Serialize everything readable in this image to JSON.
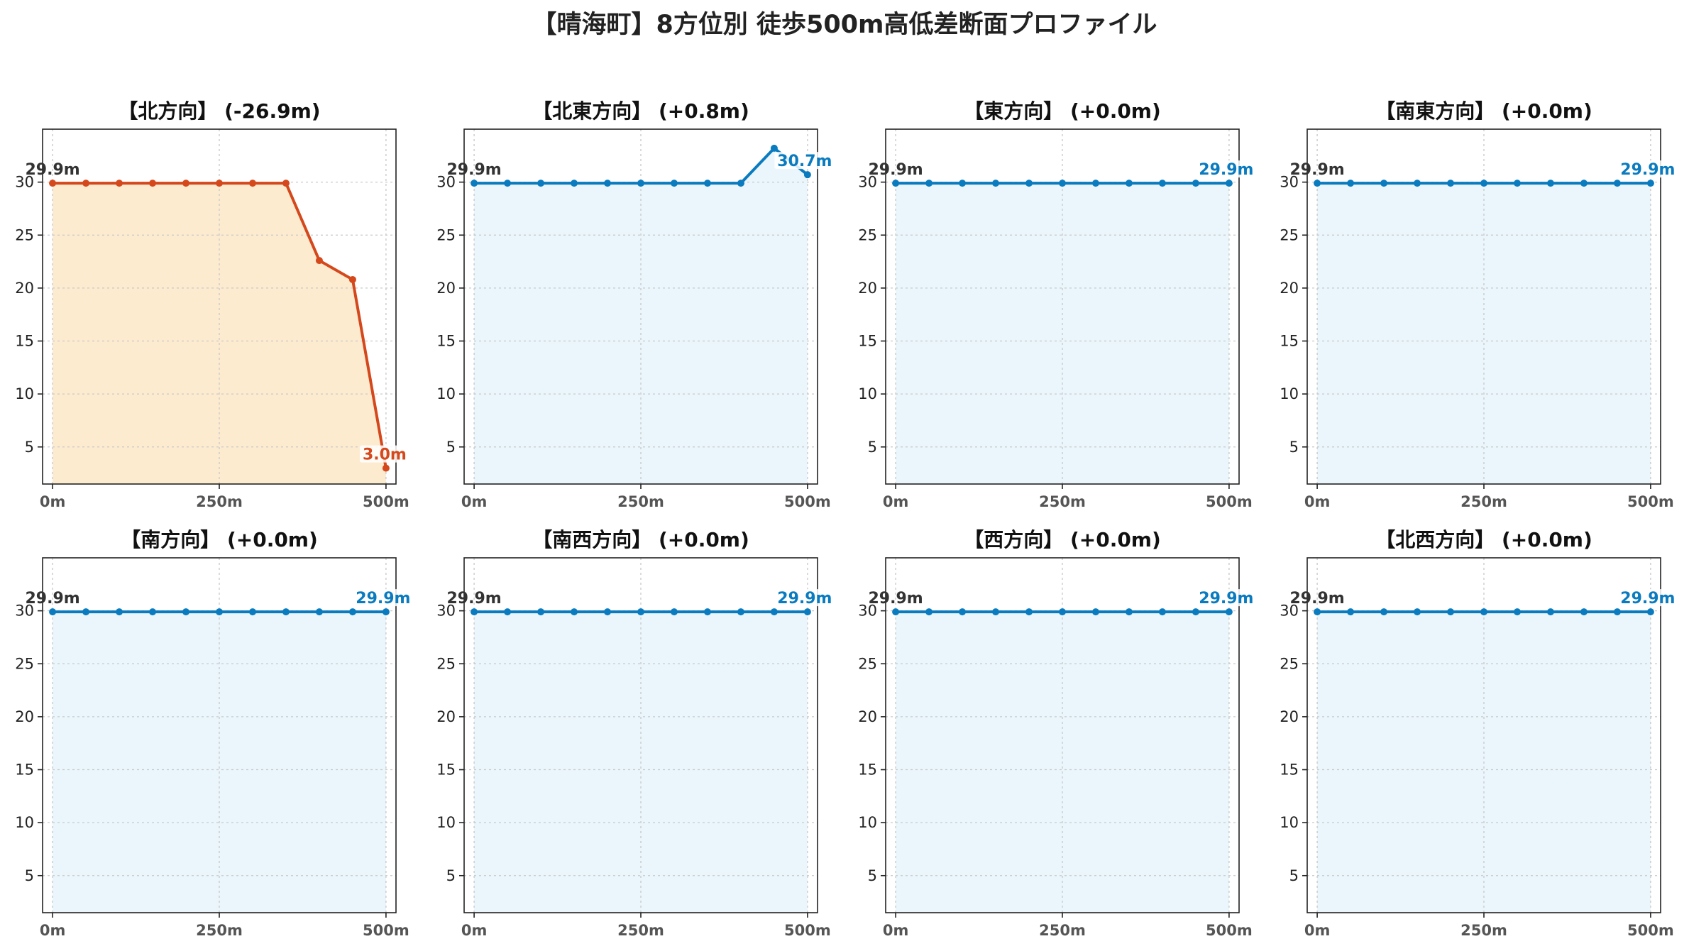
{
  "title": "【晴海町】8方位別 徒歩500m高低差断面プロファイル",
  "colors": {
    "down_line": "#d4481c",
    "down_fill": "#fdebd0",
    "flat_line": "#0a7bbf",
    "flat_fill": "#eaf6fc",
    "start_label": "#333333"
  },
  "chart_data": [
    {
      "type": "area",
      "title": "【北方向】 (-26.9m)",
      "style": "down",
      "x": [
        0,
        50,
        100,
        150,
        200,
        250,
        300,
        350,
        400,
        450,
        500
      ],
      "values": [
        29.9,
        29.9,
        29.9,
        29.9,
        29.9,
        29.9,
        29.9,
        29.9,
        22.6,
        20.8,
        3.0
      ],
      "xticks": [
        "0m",
        "250m",
        "500m"
      ],
      "yticks": [
        "5",
        "10",
        "15",
        "20",
        "25",
        "30"
      ],
      "start_label": "29.9m",
      "end_label": "3.0m",
      "xlim": [
        -15,
        515
      ],
      "ylim": [
        1.5,
        35
      ],
      "grid": true
    },
    {
      "type": "area",
      "title": "【北東方向】 (+0.8m)",
      "style": "flat",
      "x": [
        0,
        50,
        100,
        150,
        200,
        250,
        300,
        350,
        400,
        450,
        500
      ],
      "values": [
        29.9,
        29.9,
        29.9,
        29.9,
        29.9,
        29.9,
        29.9,
        29.9,
        29.9,
        33.2,
        30.7
      ],
      "xticks": [
        "0m",
        "250m",
        "500m"
      ],
      "yticks": [
        "5",
        "10",
        "15",
        "20",
        "25",
        "30"
      ],
      "start_label": "29.9m",
      "end_label": "30.7m",
      "xlim": [
        -15,
        515
      ],
      "ylim": [
        1.5,
        35
      ],
      "grid": true
    },
    {
      "type": "area",
      "title": "【東方向】 (+0.0m)",
      "style": "flat",
      "x": [
        0,
        50,
        100,
        150,
        200,
        250,
        300,
        350,
        400,
        450,
        500
      ],
      "values": [
        29.9,
        29.9,
        29.9,
        29.9,
        29.9,
        29.9,
        29.9,
        29.9,
        29.9,
        29.9,
        29.9
      ],
      "xticks": [
        "0m",
        "250m",
        "500m"
      ],
      "yticks": [
        "5",
        "10",
        "15",
        "20",
        "25",
        "30"
      ],
      "start_label": "29.9m",
      "end_label": "29.9m",
      "xlim": [
        -15,
        515
      ],
      "ylim": [
        1.5,
        35
      ],
      "grid": true
    },
    {
      "type": "area",
      "title": "【南東方向】 (+0.0m)",
      "style": "flat",
      "x": [
        0,
        50,
        100,
        150,
        200,
        250,
        300,
        350,
        400,
        450,
        500
      ],
      "values": [
        29.9,
        29.9,
        29.9,
        29.9,
        29.9,
        29.9,
        29.9,
        29.9,
        29.9,
        29.9,
        29.9
      ],
      "xticks": [
        "0m",
        "250m",
        "500m"
      ],
      "yticks": [
        "5",
        "10",
        "15",
        "20",
        "25",
        "30"
      ],
      "start_label": "29.9m",
      "end_label": "29.9m",
      "xlim": [
        -15,
        515
      ],
      "ylim": [
        1.5,
        35
      ],
      "grid": true
    },
    {
      "type": "area",
      "title": "【南方向】 (+0.0m)",
      "style": "flat",
      "x": [
        0,
        50,
        100,
        150,
        200,
        250,
        300,
        350,
        400,
        450,
        500
      ],
      "values": [
        29.9,
        29.9,
        29.9,
        29.9,
        29.9,
        29.9,
        29.9,
        29.9,
        29.9,
        29.9,
        29.9
      ],
      "xticks": [
        "0m",
        "250m",
        "500m"
      ],
      "yticks": [
        "5",
        "10",
        "15",
        "20",
        "25",
        "30"
      ],
      "start_label": "29.9m",
      "end_label": "29.9m",
      "xlim": [
        -15,
        515
      ],
      "ylim": [
        1.5,
        35
      ],
      "grid": true
    },
    {
      "type": "area",
      "title": "【南西方向】 (+0.0m)",
      "style": "flat",
      "x": [
        0,
        50,
        100,
        150,
        200,
        250,
        300,
        350,
        400,
        450,
        500
      ],
      "values": [
        29.9,
        29.9,
        29.9,
        29.9,
        29.9,
        29.9,
        29.9,
        29.9,
        29.9,
        29.9,
        29.9
      ],
      "xticks": [
        "0m",
        "250m",
        "500m"
      ],
      "yticks": [
        "5",
        "10",
        "15",
        "20",
        "25",
        "30"
      ],
      "start_label": "29.9m",
      "end_label": "29.9m",
      "xlim": [
        -15,
        515
      ],
      "ylim": [
        1.5,
        35
      ],
      "grid": true
    },
    {
      "type": "area",
      "title": "【西方向】 (+0.0m)",
      "style": "flat",
      "x": [
        0,
        50,
        100,
        150,
        200,
        250,
        300,
        350,
        400,
        450,
        500
      ],
      "values": [
        29.9,
        29.9,
        29.9,
        29.9,
        29.9,
        29.9,
        29.9,
        29.9,
        29.9,
        29.9,
        29.9
      ],
      "xticks": [
        "0m",
        "250m",
        "500m"
      ],
      "yticks": [
        "5",
        "10",
        "15",
        "20",
        "25",
        "30"
      ],
      "start_label": "29.9m",
      "end_label": "29.9m",
      "xlim": [
        -15,
        515
      ],
      "ylim": [
        1.5,
        35
      ],
      "grid": true
    },
    {
      "type": "area",
      "title": "【北西方向】 (+0.0m)",
      "style": "flat",
      "x": [
        0,
        50,
        100,
        150,
        200,
        250,
        300,
        350,
        400,
        450,
        500
      ],
      "values": [
        29.9,
        29.9,
        29.9,
        29.9,
        29.9,
        29.9,
        29.9,
        29.9,
        29.9,
        29.9,
        29.9
      ],
      "xticks": [
        "0m",
        "250m",
        "500m"
      ],
      "yticks": [
        "5",
        "10",
        "15",
        "20",
        "25",
        "30"
      ],
      "start_label": "29.9m",
      "end_label": "29.9m",
      "xlim": [
        -15,
        515
      ],
      "ylim": [
        1.5,
        35
      ],
      "grid": true
    }
  ]
}
